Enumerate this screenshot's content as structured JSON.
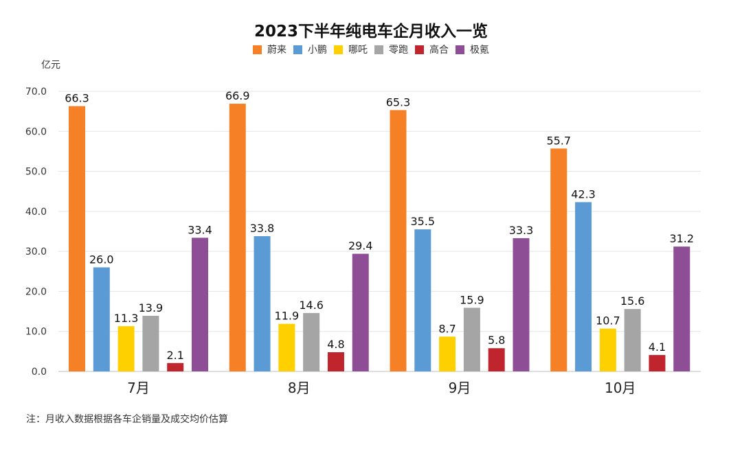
{
  "chart_data": {
    "type": "bar",
    "title": "2023下半年纯电车企月收入一览",
    "ylabel": "亿元",
    "xlabel": "",
    "ylim": [
      0,
      70
    ],
    "yticks": [
      "0.0",
      "10.0",
      "20.0",
      "30.0",
      "40.0",
      "50.0",
      "60.0",
      "70.0"
    ],
    "grid": true,
    "legend_position": "top",
    "categories": [
      "7月",
      "8月",
      "9月",
      "10月"
    ],
    "series": [
      {
        "name": "蔚来",
        "color": "#F58025",
        "values": [
          66.3,
          66.9,
          65.3,
          55.7
        ]
      },
      {
        "name": "小鹏",
        "color": "#5B9BD5",
        "values": [
          26.0,
          33.8,
          35.5,
          42.3
        ]
      },
      {
        "name": "哪吒",
        "color": "#FFD000",
        "values": [
          11.3,
          11.9,
          8.7,
          10.7
        ]
      },
      {
        "name": "零跑",
        "color": "#A5A5A5",
        "values": [
          13.9,
          14.6,
          15.9,
          15.6
        ]
      },
      {
        "name": "高合",
        "color": "#C0242C",
        "values": [
          2.1,
          4.8,
          5.8,
          4.1
        ]
      },
      {
        "name": "极氪",
        "color": "#8E4E96",
        "values": [
          33.4,
          29.4,
          33.3,
          31.2
        ]
      }
    ],
    "note": "注：月收入数据根据各车企销量及成交均价估算"
  }
}
